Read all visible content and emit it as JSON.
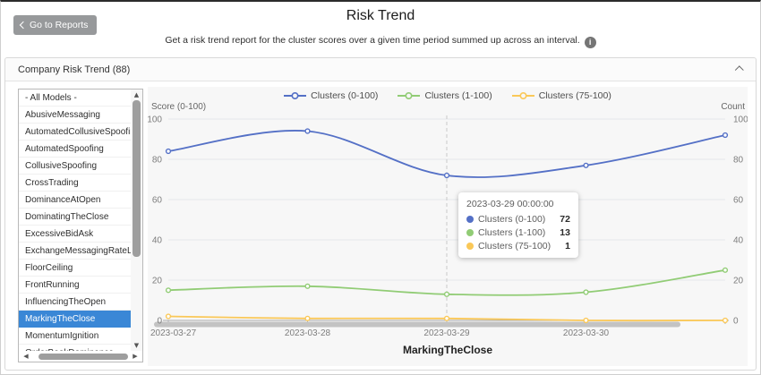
{
  "header": {
    "back_button_label": "Go to Reports",
    "title": "Risk Trend",
    "subtitle": "Get a risk trend report for the cluster scores over a given time period summed up across an interval.",
    "info_icon_glyph": "i"
  },
  "panel": {
    "title": "Company Risk Trend (88)"
  },
  "model_list": {
    "items": [
      "- All Models -",
      "AbusiveMessaging",
      "AutomatedCollusiveSpoofing",
      "AutomatedSpoofing",
      "CollusiveSpoofing",
      "CrossTrading",
      "DominanceAtOpen",
      "DominatingTheClose",
      "ExcessiveBidAsk",
      "ExchangeMessagingRateLimit",
      "FloorCeiling",
      "FrontRunning",
      "InfluencingTheOpen",
      "MarkingTheClose",
      "MomentumIgnition",
      "OrderBookDominance"
    ],
    "selected": "MarkingTheClose",
    "selected_bg": "#3a87d6"
  },
  "icons": {
    "scroll_up": "▲",
    "scroll_down": "▼",
    "scroll_left": "◀",
    "scroll_right": "▶"
  },
  "chart_data": {
    "type": "line",
    "smooth": true,
    "x": [
      "2023-03-27",
      "2023-03-28",
      "2023-03-29",
      "2023-03-30",
      ""
    ],
    "series": [
      {
        "name": "Clusters (0-100)",
        "color": "#5470c6",
        "values": [
          84,
          94,
          72,
          77,
          92
        ]
      },
      {
        "name": "Clusters (1-100)",
        "color": "#91cc75",
        "values": [
          15,
          17,
          13,
          14,
          25
        ]
      },
      {
        "name": "Clusters (75-100)",
        "color": "#fac858",
        "values": [
          2,
          1,
          1,
          0,
          0
        ]
      }
    ],
    "y_left_label": "Score (0-100)",
    "y_right_label": "Count",
    "y_ticks": [
      0,
      20,
      40,
      60,
      80,
      100
    ],
    "ylim": [
      0,
      100
    ],
    "grid": true,
    "legend_position": "top",
    "xlabel": "MarkingTheClose",
    "indicator_x_index": 2,
    "tooltip": {
      "title": "2023-03-29 00:00:00",
      "x_index": 2,
      "rows": [
        {
          "name": "Clusters (0-100)",
          "color": "#5470c6",
          "value": "72"
        },
        {
          "name": "Clusters (1-100)",
          "color": "#91cc75",
          "value": "13"
        },
        {
          "name": "Clusters (75-100)",
          "color": "#fac858",
          "value": "1"
        }
      ]
    }
  }
}
